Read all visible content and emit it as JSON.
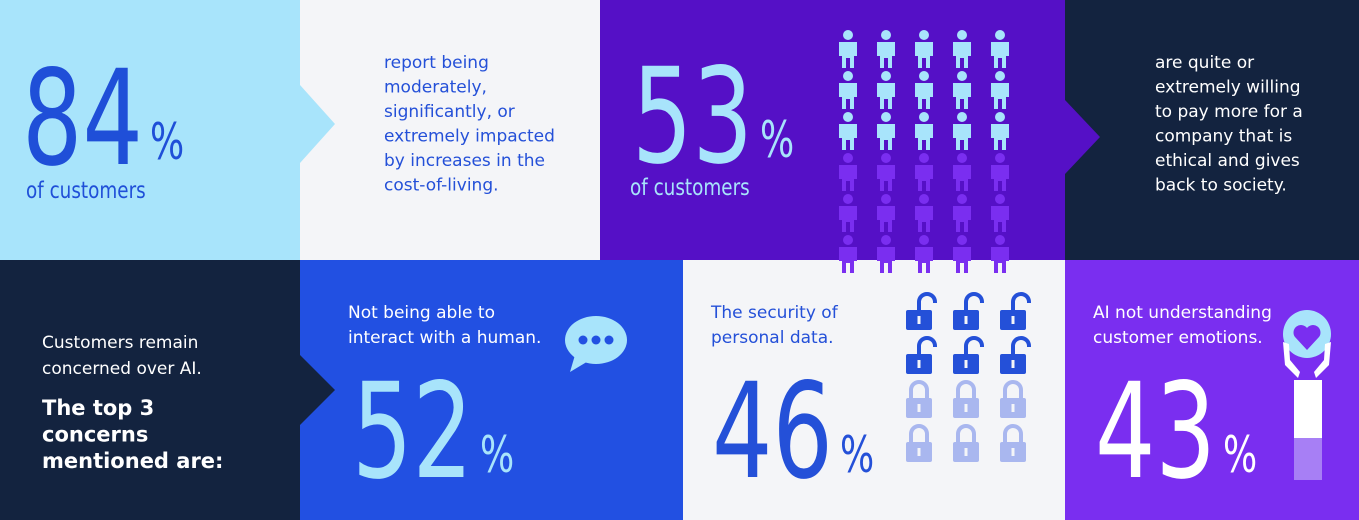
{
  "stats": [
    {
      "value": 84,
      "unit": "%",
      "caption": "of customers",
      "text": [
        "report being",
        "moderately,",
        "significantly, or",
        "extremely impacted",
        "by increases in the",
        "cost-of-living."
      ]
    },
    {
      "value": 53,
      "unit": "%",
      "caption": "of customers",
      "text": [
        "are quite or",
        "extremely willing",
        "to pay more for a",
        "company that is",
        "ethical and gives",
        "back to society."
      ]
    }
  ],
  "concerns": {
    "intro": [
      "Customers remain",
      "concerned over AI."
    ],
    "heading": [
      "The top 3",
      "concerns",
      "mentioned are:"
    ],
    "items": [
      {
        "text": [
          "Not being able to",
          "interact with a human."
        ],
        "value": 52,
        "unit": "%"
      },
      {
        "text": [
          "The security of",
          "personal data."
        ],
        "value": 46,
        "unit": "%"
      },
      {
        "text": [
          "AI not understanding",
          "customer emotions."
        ],
        "value": 43,
        "unit": "%"
      }
    ]
  }
}
